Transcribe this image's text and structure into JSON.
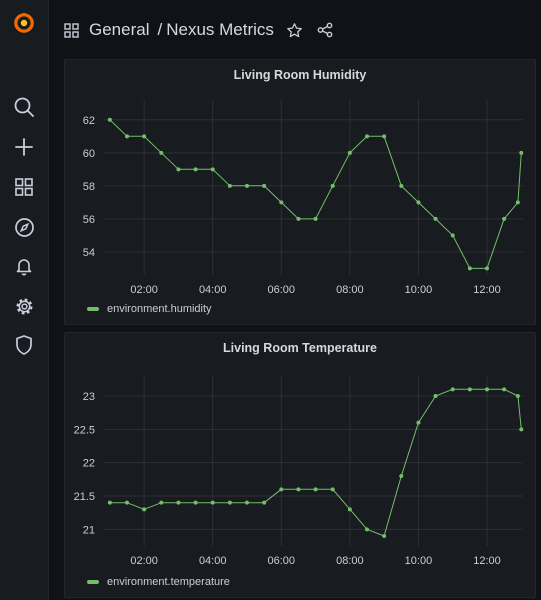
{
  "header": {
    "folder": "General",
    "separator": "/",
    "dashboard_title": "Nexus Metrics"
  },
  "sidebar": {
    "items": [
      "search-icon",
      "plus-icon",
      "dashboards-icon",
      "explore-icon",
      "alerting-icon",
      "settings-icon",
      "shield-icon"
    ]
  },
  "colors": {
    "series": "#73bf69",
    "grid": "#2c3036",
    "text": "#ccccdc",
    "logo": "#f46800"
  },
  "chart_data": [
    {
      "type": "line",
      "title": "Living Room Humidity",
      "x_labels": [
        "02:00",
        "04:00",
        "06:00",
        "08:00",
        "10:00",
        "12:00"
      ],
      "y_ticks": [
        54,
        56,
        58,
        60,
        62
      ],
      "ylim": [
        52.6,
        63.2
      ],
      "xlim": [
        0.8,
        13.05
      ],
      "grid": true,
      "legend_position": "bottom-left",
      "series": [
        {
          "name": "environment.humidity",
          "points": [
            [
              1.0,
              62
            ],
            [
              1.5,
              61
            ],
            [
              2.0,
              61
            ],
            [
              2.5,
              60
            ],
            [
              3.0,
              59
            ],
            [
              3.5,
              59
            ],
            [
              4.0,
              59
            ],
            [
              4.5,
              58
            ],
            [
              5.0,
              58
            ],
            [
              5.5,
              58
            ],
            [
              6.0,
              57
            ],
            [
              6.5,
              56
            ],
            [
              7.0,
              56
            ],
            [
              7.5,
              58
            ],
            [
              8.0,
              60
            ],
            [
              8.5,
              61
            ],
            [
              9.0,
              61
            ],
            [
              9.5,
              58
            ],
            [
              10.0,
              57
            ],
            [
              10.5,
              56
            ],
            [
              11.0,
              55
            ],
            [
              11.5,
              53
            ],
            [
              12.0,
              53
            ],
            [
              12.5,
              56
            ],
            [
              12.9,
              57
            ],
            [
              13.0,
              60
            ]
          ]
        }
      ]
    },
    {
      "type": "line",
      "title": "Living Room Temperature",
      "x_labels": [
        "02:00",
        "04:00",
        "06:00",
        "08:00",
        "10:00",
        "12:00"
      ],
      "y_ticks": [
        "21",
        "21.5",
        "22",
        "22.5",
        "23"
      ],
      "ylim": [
        20.75,
        23.3
      ],
      "xlim": [
        0.8,
        13.05
      ],
      "grid": true,
      "legend_position": "bottom-left",
      "series": [
        {
          "name": "environment.temperature",
          "points": [
            [
              1.0,
              21.4
            ],
            [
              1.5,
              21.4
            ],
            [
              2.0,
              21.3
            ],
            [
              2.5,
              21.4
            ],
            [
              3.0,
              21.4
            ],
            [
              3.5,
              21.4
            ],
            [
              4.0,
              21.4
            ],
            [
              4.5,
              21.4
            ],
            [
              5.0,
              21.4
            ],
            [
              5.5,
              21.4
            ],
            [
              6.0,
              21.6
            ],
            [
              6.5,
              21.6
            ],
            [
              7.0,
              21.6
            ],
            [
              7.5,
              21.6
            ],
            [
              8.0,
              21.3
            ],
            [
              8.5,
              21.0
            ],
            [
              9.0,
              20.9
            ],
            [
              9.5,
              21.8
            ],
            [
              10.0,
              22.6
            ],
            [
              10.5,
              23.0
            ],
            [
              11.0,
              23.1
            ],
            [
              11.5,
              23.1
            ],
            [
              12.0,
              23.1
            ],
            [
              12.5,
              23.1
            ],
            [
              12.9,
              23.0
            ],
            [
              13.0,
              22.5
            ]
          ]
        }
      ]
    }
  ]
}
